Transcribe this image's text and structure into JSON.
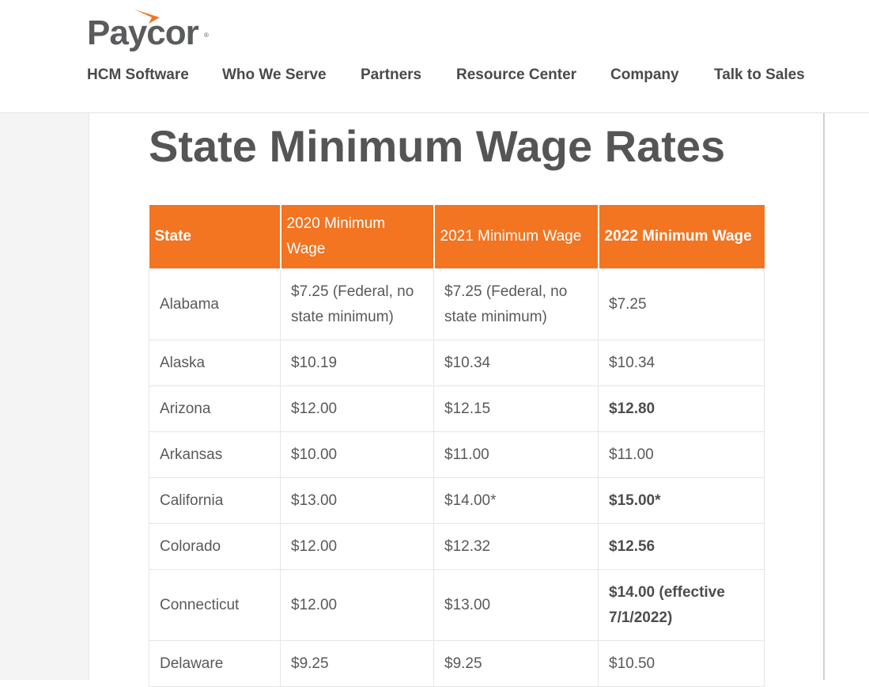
{
  "brand": {
    "name": "Paycor",
    "accent": "#f37421"
  },
  "nav": {
    "items": [
      {
        "label": "HCM Software"
      },
      {
        "label": "Who We Serve"
      },
      {
        "label": "Partners"
      },
      {
        "label": "Resource Center"
      },
      {
        "label": "Company"
      },
      {
        "label": "Talk to Sales"
      }
    ]
  },
  "main": {
    "title": "State Minimum Wage Rates",
    "table": {
      "headers": [
        "State",
        "2020 Minimum Wage",
        "2021 Minimum Wage",
        "2022 Minimum Wage"
      ],
      "rows": [
        [
          "Alabama",
          "$7.25 (Federal, no state minimum)",
          "$7.25 (Federal, no state minimum)",
          "$7.25"
        ],
        [
          "Alaska",
          "$10.19",
          "$10.34",
          "$10.34"
        ],
        [
          "Arizona",
          "$12.00",
          "$12.15",
          "$12.80"
        ],
        [
          "Arkansas",
          "$10.00",
          "$11.00",
          "$11.00"
        ],
        [
          "California",
          "$13.00",
          "$14.00*",
          "$15.00*"
        ],
        [
          "Colorado",
          "$12.00",
          "$12.32",
          "$12.56"
        ],
        [
          "Connecticut",
          "$12.00",
          "$13.00",
          "$14.00 (effective 7/1/2022)"
        ],
        [
          "Delaware",
          "$9.25",
          "$9.25",
          "$10.50"
        ]
      ]
    }
  }
}
